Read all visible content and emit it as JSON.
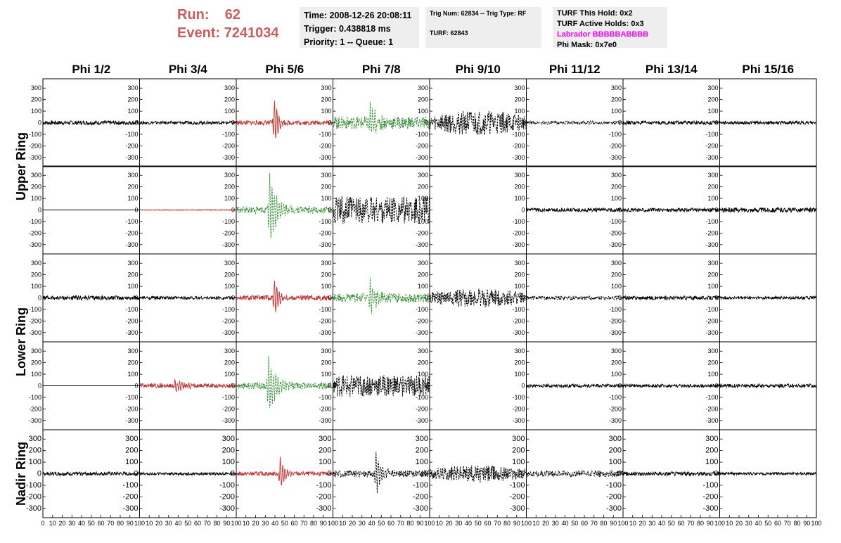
{
  "run_box": {
    "run_label": "Run:",
    "run_value": "62",
    "event_label": "Event:",
    "event_value": "7241034"
  },
  "info_box_1": {
    "time": "Time: 2008-12-26 20:08:11",
    "trigger": "Trigger: 0.438818 ms",
    "priority": "Priority: 1 -- Queue: 1"
  },
  "info_box_2": {
    "trig": "Trig Num: 62834 -- Trig Type: RF",
    "turf": "TURF: 62843"
  },
  "info_box_3": {
    "hold": "TURF This Hold: 0x2",
    "active": "TURF Active Holds: 0x3",
    "labrador": "Labrador BBBBBABBBB",
    "phi_mask": "Phi Mask: 0x7e0"
  },
  "chart_data": {
    "type": "line",
    "columns": [
      "Phi 1/2",
      "Phi 3/4",
      "Phi 5/6",
      "Phi 7/8",
      "Phi 9/10",
      "Phi 11/12",
      "Phi 13/14",
      "Phi 15/16"
    ],
    "rings": [
      "Upper Ring",
      "Lower Ring",
      "Nadir Ring"
    ],
    "rows_per_ring": [
      2,
      2,
      1
    ],
    "ylim": [
      -350,
      350
    ],
    "y_ticks": [
      300,
      200,
      100,
      0,
      -100,
      -200,
      -300
    ],
    "xlim": [
      0,
      100
    ],
    "x_ticks": [
      0,
      10,
      20,
      30,
      40,
      50,
      60,
      70,
      80,
      90,
      100
    ],
    "x_tick_labels": [
      "0",
      "10",
      "20",
      "30",
      "40",
      "50",
      "60",
      "70",
      "80",
      "90",
      "100"
    ],
    "colors": {
      "black": "#000000",
      "red": "#c03030",
      "green": "#2e8b2e",
      "run_text": "#cd5c5c",
      "labrador": "#ff00ff"
    },
    "panels": [
      [
        {
          "color": "black",
          "amp": 18,
          "spike": null,
          "style": "solid"
        },
        {
          "color": "black",
          "amp": 14,
          "spike": null,
          "style": "solid"
        },
        {
          "color": "red",
          "amp": 20,
          "spike": {
            "t": 39,
            "amp": 230,
            "decay": 4
          },
          "style": "solid"
        },
        {
          "color": "green",
          "amp": 55,
          "spike": {
            "t": 38,
            "amp": 180,
            "decay": 6
          },
          "style": "dashed"
        },
        {
          "color": "black",
          "amp": 110,
          "spike": null,
          "style": "dashed",
          "envelope": true
        },
        {
          "color": "black",
          "amp": 15,
          "spike": null,
          "style": "dashed"
        },
        {
          "color": "black",
          "amp": 16,
          "spike": null,
          "style": "solid"
        },
        {
          "color": "black",
          "amp": 14,
          "spike": null,
          "style": "solid"
        }
      ],
      [
        {
          "color": "black",
          "amp": 0,
          "spike": null,
          "style": "solid"
        },
        {
          "color": "red",
          "amp": 4,
          "spike": null,
          "style": "solid"
        },
        {
          "color": "green",
          "amp": 30,
          "spike": {
            "t": 34,
            "amp": 350,
            "decay": 7
          },
          "style": "dashed"
        },
        {
          "color": "black",
          "amp": 120,
          "spike": null,
          "style": "dashed"
        },
        {
          "color": "black",
          "amp": 0,
          "spike": null,
          "style": "solid",
          "empty": true
        },
        {
          "color": "black",
          "amp": 16,
          "spike": null,
          "style": "solid"
        },
        {
          "color": "black",
          "amp": 16,
          "spike": null,
          "style": "solid"
        },
        {
          "color": "black",
          "amp": 20,
          "spike": null,
          "style": "solid"
        }
      ],
      [
        {
          "color": "black",
          "amp": 18,
          "spike": null,
          "style": "solid"
        },
        {
          "color": "black",
          "amp": 14,
          "spike": null,
          "style": "solid"
        },
        {
          "color": "red",
          "amp": 22,
          "spike": {
            "t": 39,
            "amp": 190,
            "decay": 4
          },
          "style": "solid"
        },
        {
          "color": "green",
          "amp": 40,
          "spike": {
            "t": 38,
            "amp": 160,
            "decay": 6
          },
          "style": "dashed"
        },
        {
          "color": "black",
          "amp": 85,
          "spike": null,
          "style": "dashed",
          "envelope": true
        },
        {
          "color": "black",
          "amp": 18,
          "spike": null,
          "style": "dashed"
        },
        {
          "color": "black",
          "amp": 16,
          "spike": null,
          "style": "solid"
        },
        {
          "color": "black",
          "amp": 14,
          "spike": null,
          "style": "solid"
        }
      ],
      [
        {
          "color": "black",
          "amp": 0,
          "spike": null,
          "style": "solid"
        },
        {
          "color": "red",
          "amp": 20,
          "spike": {
            "t": 36,
            "amp": 60,
            "decay": 8
          },
          "style": "solid"
        },
        {
          "color": "green",
          "amp": 30,
          "spike": {
            "t": 33,
            "amp": 270,
            "decay": 7
          },
          "style": "dashed"
        },
        {
          "color": "black",
          "amp": 95,
          "spike": null,
          "style": "dashed"
        },
        {
          "color": "black",
          "amp": 0,
          "spike": null,
          "style": "solid",
          "empty": true
        },
        {
          "color": "black",
          "amp": 14,
          "spike": null,
          "style": "solid"
        },
        {
          "color": "black",
          "amp": 14,
          "spike": null,
          "style": "solid"
        },
        {
          "color": "black",
          "amp": 16,
          "spike": null,
          "style": "solid"
        }
      ],
      [
        {
          "color": "black",
          "amp": 16,
          "spike": null,
          "style": "solid"
        },
        {
          "color": "black",
          "amp": 12,
          "spike": null,
          "style": "solid"
        },
        {
          "color": "red",
          "amp": 18,
          "spike": {
            "t": 45,
            "amp": 170,
            "decay": 4
          },
          "style": "solid"
        },
        {
          "color": "black",
          "amp": 30,
          "spike": {
            "t": 44,
            "amp": 190,
            "decay": 6
          },
          "style": "dashed"
        },
        {
          "color": "black",
          "amp": 75,
          "spike": null,
          "style": "dashed",
          "envelope": true
        },
        {
          "color": "black",
          "amp": 28,
          "spike": null,
          "style": "dashed"
        },
        {
          "color": "black",
          "amp": 18,
          "spike": null,
          "style": "solid"
        },
        {
          "color": "black",
          "amp": 12,
          "spike": null,
          "style": "solid"
        }
      ]
    ]
  }
}
